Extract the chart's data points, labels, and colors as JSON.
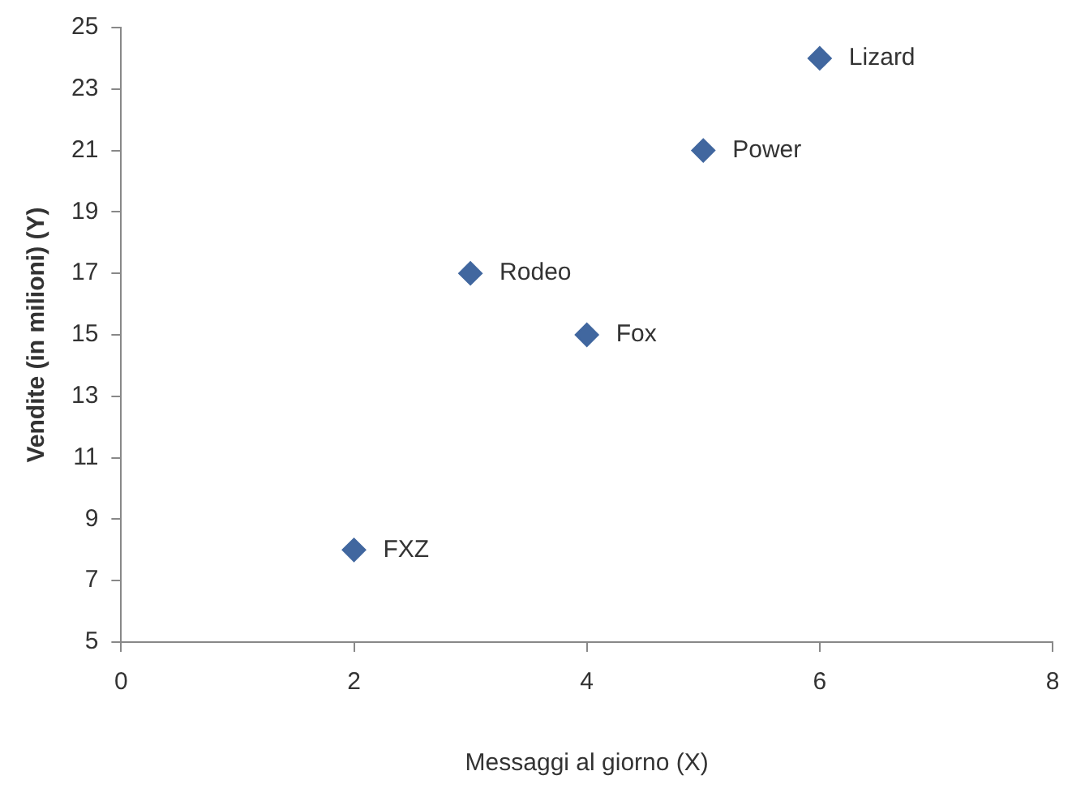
{
  "chart_data": {
    "type": "scatter",
    "xlabel": "Messaggi al giorno (X)",
    "ylabel": "Vendite (in milioni) (Y)",
    "x": [
      2,
      3,
      4,
      5,
      6
    ],
    "values": [
      8,
      17,
      15,
      21,
      24
    ],
    "color": "#41679f",
    "marker": "diamond",
    "xlim": [
      0,
      8
    ],
    "xticks": [
      0,
      2,
      4,
      6,
      8
    ],
    "ylim": [
      5,
      25
    ],
    "yticks": [
      5,
      7,
      9,
      11,
      13,
      15,
      17,
      19,
      21,
      23,
      25
    ],
    "grid": false,
    "legend": false,
    "annotations": [
      {
        "text": "FXZ",
        "x": 2,
        "y": 8
      },
      {
        "text": "Rodeo",
        "x": 3,
        "y": 17
      },
      {
        "text": "Fox",
        "x": 4,
        "y": 15
      },
      {
        "text": "Power",
        "x": 5,
        "y": 21
      },
      {
        "text": "Lizard",
        "x": 6,
        "y": 24
      }
    ]
  }
}
